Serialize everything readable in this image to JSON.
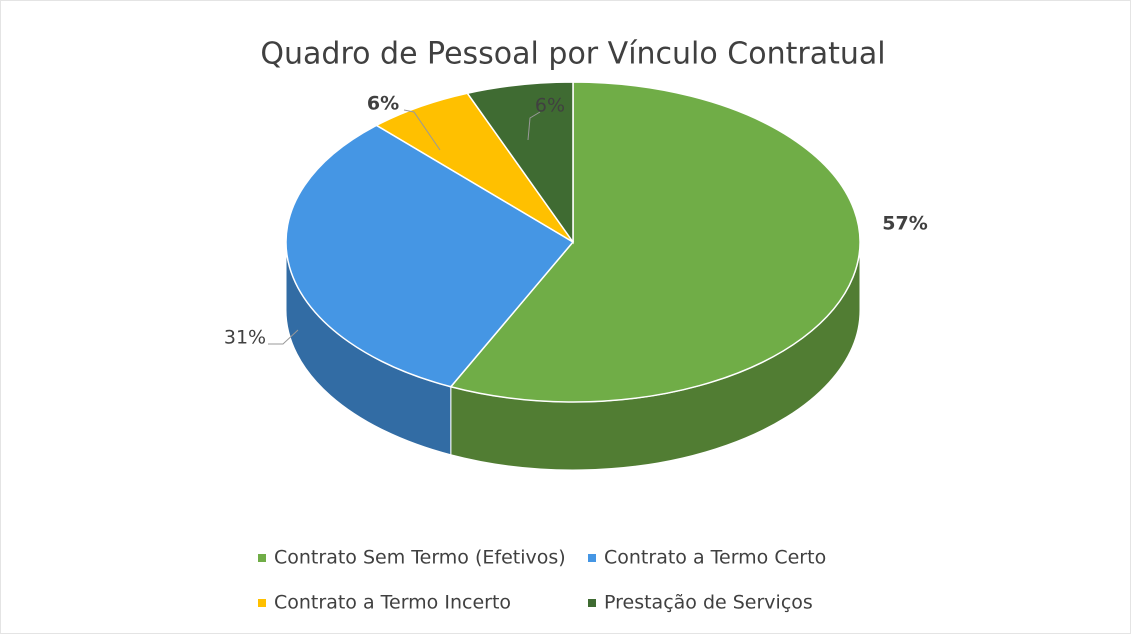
{
  "chart_data": {
    "type": "pie",
    "title": "Quadro de Pessoal por Vínculo Contratual",
    "categories": [
      "Contrato Sem Termo (Efetivos)",
      "Contrato a Termo Certo",
      "Contrato a Termo Incerto",
      "Prestação de Serviços"
    ],
    "values": [
      57,
      31,
      6,
      6
    ],
    "value_labels": [
      "57%",
      "31%",
      "6%",
      "6%"
    ],
    "colors": [
      "#70ad47",
      "#4596e4",
      "#ffc000",
      "#3f6b32"
    ],
    "legend": "bottom"
  }
}
